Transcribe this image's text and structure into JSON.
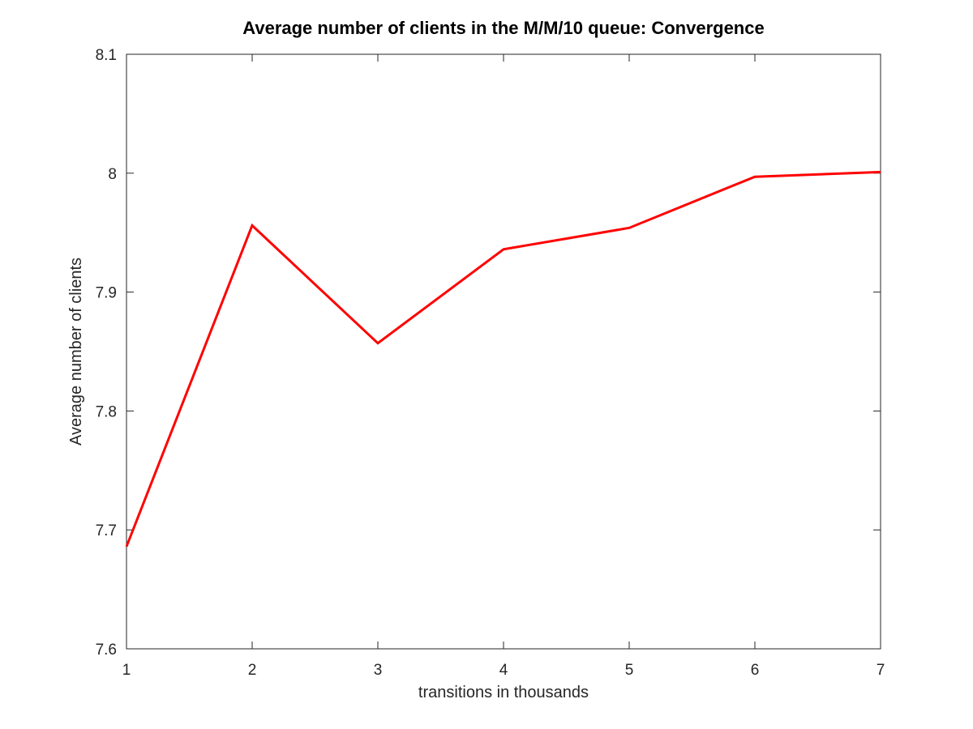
{
  "chart_data": {
    "type": "line",
    "title": "Average number of clients in the M/M/10 queue: Convergence",
    "xlabel": "transitions in thousands",
    "ylabel": "Average number of clients",
    "xlim": [
      1,
      7
    ],
    "ylim": [
      7.6,
      8.1
    ],
    "xticks": [
      1,
      2,
      3,
      4,
      5,
      6,
      7
    ],
    "yticks": [
      7.6,
      7.7,
      7.8,
      7.9,
      8.0,
      8.1
    ],
    "xtick_labels": [
      "1",
      "2",
      "3",
      "4",
      "5",
      "6",
      "7"
    ],
    "ytick_labels": [
      "7.6",
      "7.7",
      "7.8",
      "7.9",
      "8",
      "8.1"
    ],
    "grid": false,
    "box": true,
    "series": [
      {
        "x": [
          1,
          2,
          3,
          4,
          5,
          6,
          7
        ],
        "values": [
          7.686,
          7.956,
          7.857,
          7.936,
          7.954,
          7.997,
          8.001
        ],
        "color": "#ff0000"
      }
    ]
  }
}
